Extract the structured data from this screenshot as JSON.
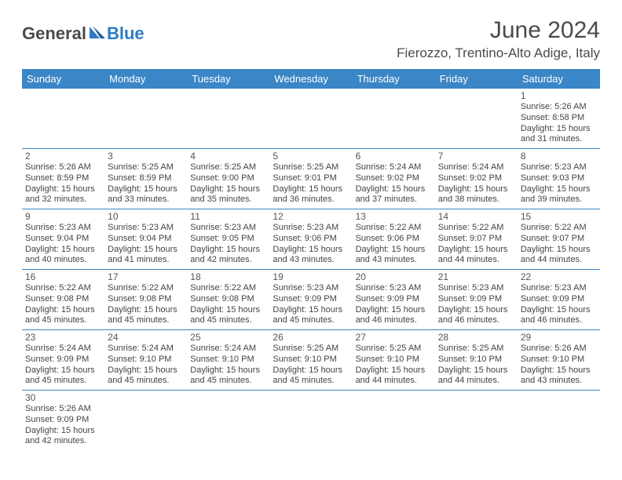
{
  "brand": {
    "part1": "General",
    "part2": "Blue"
  },
  "title": {
    "month_year": "June 2024",
    "location": "Fierozzo, Trentino-Alto Adige, Italy"
  },
  "style": {
    "header_bg": "#3b86c6",
    "header_fg": "#ffffff",
    "row_border": "#3b86c6",
    "text_color": "#444444",
    "brand_blue": "#2d7cc1",
    "page_bg": "#ffffff",
    "month_title_fontsize": 30,
    "location_fontsize": 17,
    "dayheader_fontsize": 13,
    "cell_fontsize": 11,
    "columns": 7,
    "rows": 6
  },
  "day_headers": [
    "Sunday",
    "Monday",
    "Tuesday",
    "Wednesday",
    "Thursday",
    "Friday",
    "Saturday"
  ],
  "weeks": [
    [
      null,
      null,
      null,
      null,
      null,
      null,
      {
        "n": "1",
        "sunrise": "Sunrise: 5:26 AM",
        "sunset": "Sunset: 8:58 PM",
        "day1": "Daylight: 15 hours",
        "day2": "and 31 minutes."
      }
    ],
    [
      {
        "n": "2",
        "sunrise": "Sunrise: 5:26 AM",
        "sunset": "Sunset: 8:59 PM",
        "day1": "Daylight: 15 hours",
        "day2": "and 32 minutes."
      },
      {
        "n": "3",
        "sunrise": "Sunrise: 5:25 AM",
        "sunset": "Sunset: 8:59 PM",
        "day1": "Daylight: 15 hours",
        "day2": "and 33 minutes."
      },
      {
        "n": "4",
        "sunrise": "Sunrise: 5:25 AM",
        "sunset": "Sunset: 9:00 PM",
        "day1": "Daylight: 15 hours",
        "day2": "and 35 minutes."
      },
      {
        "n": "5",
        "sunrise": "Sunrise: 5:25 AM",
        "sunset": "Sunset: 9:01 PM",
        "day1": "Daylight: 15 hours",
        "day2": "and 36 minutes."
      },
      {
        "n": "6",
        "sunrise": "Sunrise: 5:24 AM",
        "sunset": "Sunset: 9:02 PM",
        "day1": "Daylight: 15 hours",
        "day2": "and 37 minutes."
      },
      {
        "n": "7",
        "sunrise": "Sunrise: 5:24 AM",
        "sunset": "Sunset: 9:02 PM",
        "day1": "Daylight: 15 hours",
        "day2": "and 38 minutes."
      },
      {
        "n": "8",
        "sunrise": "Sunrise: 5:23 AM",
        "sunset": "Sunset: 9:03 PM",
        "day1": "Daylight: 15 hours",
        "day2": "and 39 minutes."
      }
    ],
    [
      {
        "n": "9",
        "sunrise": "Sunrise: 5:23 AM",
        "sunset": "Sunset: 9:04 PM",
        "day1": "Daylight: 15 hours",
        "day2": "and 40 minutes."
      },
      {
        "n": "10",
        "sunrise": "Sunrise: 5:23 AM",
        "sunset": "Sunset: 9:04 PM",
        "day1": "Daylight: 15 hours",
        "day2": "and 41 minutes."
      },
      {
        "n": "11",
        "sunrise": "Sunrise: 5:23 AM",
        "sunset": "Sunset: 9:05 PM",
        "day1": "Daylight: 15 hours",
        "day2": "and 42 minutes."
      },
      {
        "n": "12",
        "sunrise": "Sunrise: 5:23 AM",
        "sunset": "Sunset: 9:06 PM",
        "day1": "Daylight: 15 hours",
        "day2": "and 43 minutes."
      },
      {
        "n": "13",
        "sunrise": "Sunrise: 5:22 AM",
        "sunset": "Sunset: 9:06 PM",
        "day1": "Daylight: 15 hours",
        "day2": "and 43 minutes."
      },
      {
        "n": "14",
        "sunrise": "Sunrise: 5:22 AM",
        "sunset": "Sunset: 9:07 PM",
        "day1": "Daylight: 15 hours",
        "day2": "and 44 minutes."
      },
      {
        "n": "15",
        "sunrise": "Sunrise: 5:22 AM",
        "sunset": "Sunset: 9:07 PM",
        "day1": "Daylight: 15 hours",
        "day2": "and 44 minutes."
      }
    ],
    [
      {
        "n": "16",
        "sunrise": "Sunrise: 5:22 AM",
        "sunset": "Sunset: 9:08 PM",
        "day1": "Daylight: 15 hours",
        "day2": "and 45 minutes."
      },
      {
        "n": "17",
        "sunrise": "Sunrise: 5:22 AM",
        "sunset": "Sunset: 9:08 PM",
        "day1": "Daylight: 15 hours",
        "day2": "and 45 minutes."
      },
      {
        "n": "18",
        "sunrise": "Sunrise: 5:22 AM",
        "sunset": "Sunset: 9:08 PM",
        "day1": "Daylight: 15 hours",
        "day2": "and 45 minutes."
      },
      {
        "n": "19",
        "sunrise": "Sunrise: 5:23 AM",
        "sunset": "Sunset: 9:09 PM",
        "day1": "Daylight: 15 hours",
        "day2": "and 45 minutes."
      },
      {
        "n": "20",
        "sunrise": "Sunrise: 5:23 AM",
        "sunset": "Sunset: 9:09 PM",
        "day1": "Daylight: 15 hours",
        "day2": "and 46 minutes."
      },
      {
        "n": "21",
        "sunrise": "Sunrise: 5:23 AM",
        "sunset": "Sunset: 9:09 PM",
        "day1": "Daylight: 15 hours",
        "day2": "and 46 minutes."
      },
      {
        "n": "22",
        "sunrise": "Sunrise: 5:23 AM",
        "sunset": "Sunset: 9:09 PM",
        "day1": "Daylight: 15 hours",
        "day2": "and 46 minutes."
      }
    ],
    [
      {
        "n": "23",
        "sunrise": "Sunrise: 5:24 AM",
        "sunset": "Sunset: 9:09 PM",
        "day1": "Daylight: 15 hours",
        "day2": "and 45 minutes."
      },
      {
        "n": "24",
        "sunrise": "Sunrise: 5:24 AM",
        "sunset": "Sunset: 9:10 PM",
        "day1": "Daylight: 15 hours",
        "day2": "and 45 minutes."
      },
      {
        "n": "25",
        "sunrise": "Sunrise: 5:24 AM",
        "sunset": "Sunset: 9:10 PM",
        "day1": "Daylight: 15 hours",
        "day2": "and 45 minutes."
      },
      {
        "n": "26",
        "sunrise": "Sunrise: 5:25 AM",
        "sunset": "Sunset: 9:10 PM",
        "day1": "Daylight: 15 hours",
        "day2": "and 45 minutes."
      },
      {
        "n": "27",
        "sunrise": "Sunrise: 5:25 AM",
        "sunset": "Sunset: 9:10 PM",
        "day1": "Daylight: 15 hours",
        "day2": "and 44 minutes."
      },
      {
        "n": "28",
        "sunrise": "Sunrise: 5:25 AM",
        "sunset": "Sunset: 9:10 PM",
        "day1": "Daylight: 15 hours",
        "day2": "and 44 minutes."
      },
      {
        "n": "29",
        "sunrise": "Sunrise: 5:26 AM",
        "sunset": "Sunset: 9:10 PM",
        "day1": "Daylight: 15 hours",
        "day2": "and 43 minutes."
      }
    ],
    [
      {
        "n": "30",
        "sunrise": "Sunrise: 5:26 AM",
        "sunset": "Sunset: 9:09 PM",
        "day1": "Daylight: 15 hours",
        "day2": "and 42 minutes."
      },
      null,
      null,
      null,
      null,
      null,
      null
    ]
  ]
}
